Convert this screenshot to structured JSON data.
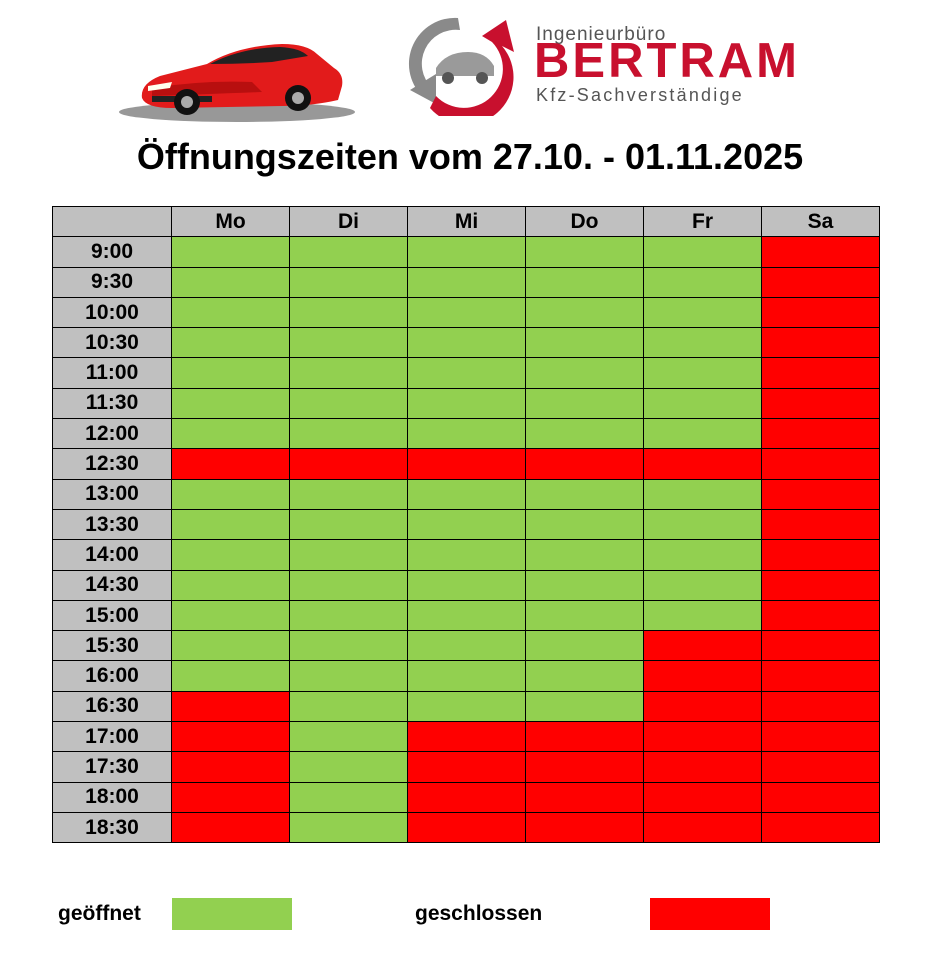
{
  "logo": {
    "small": "Ingenieurbüro",
    "name": "BERTRAM",
    "subtitle": "Kfz-Sachverständige"
  },
  "title": "Öffnungszeiten vom 27.10. - 01.11.2025",
  "days": [
    "Mo",
    "Di",
    "Mi",
    "Do",
    "Fr",
    "Sa"
  ],
  "times": [
    "9:00",
    "9:30",
    "10:00",
    "10:30",
    "11:00",
    "11:30",
    "12:00",
    "12:30",
    "13:00",
    "13:30",
    "14:00",
    "14:30",
    "15:00",
    "15:30",
    "16:00",
    "16:30",
    "17:00",
    "17:30",
    "18:00",
    "18:30"
  ],
  "status": [
    [
      "o",
      "o",
      "o",
      "o",
      "o",
      "c"
    ],
    [
      "o",
      "o",
      "o",
      "o",
      "o",
      "c"
    ],
    [
      "o",
      "o",
      "o",
      "o",
      "o",
      "c"
    ],
    [
      "o",
      "o",
      "o",
      "o",
      "o",
      "c"
    ],
    [
      "o",
      "o",
      "o",
      "o",
      "o",
      "c"
    ],
    [
      "o",
      "o",
      "o",
      "o",
      "o",
      "c"
    ],
    [
      "o",
      "o",
      "o",
      "o",
      "o",
      "c"
    ],
    [
      "c",
      "c",
      "c",
      "c",
      "c",
      "c"
    ],
    [
      "o",
      "o",
      "o",
      "o",
      "o",
      "c"
    ],
    [
      "o",
      "o",
      "o",
      "o",
      "o",
      "c"
    ],
    [
      "o",
      "o",
      "o",
      "o",
      "o",
      "c"
    ],
    [
      "o",
      "o",
      "o",
      "o",
      "o",
      "c"
    ],
    [
      "o",
      "o",
      "o",
      "o",
      "o",
      "c"
    ],
    [
      "o",
      "o",
      "o",
      "o",
      "c",
      "c"
    ],
    [
      "o",
      "o",
      "o",
      "o",
      "c",
      "c"
    ],
    [
      "c",
      "o",
      "o",
      "o",
      "c",
      "c"
    ],
    [
      "c",
      "o",
      "c",
      "c",
      "c",
      "c"
    ],
    [
      "c",
      "o",
      "c",
      "c",
      "c",
      "c"
    ],
    [
      "c",
      "o",
      "c",
      "c",
      "c",
      "c"
    ],
    [
      "c",
      "o",
      "c",
      "c",
      "c",
      "c"
    ]
  ],
  "legend": {
    "open_label": "geöffnet",
    "closed_label": "geschlossen"
  },
  "colors": {
    "open": "#92d050",
    "closed": "#ff0000",
    "header": "#c0c0c0",
    "brand": "#c8102e"
  }
}
